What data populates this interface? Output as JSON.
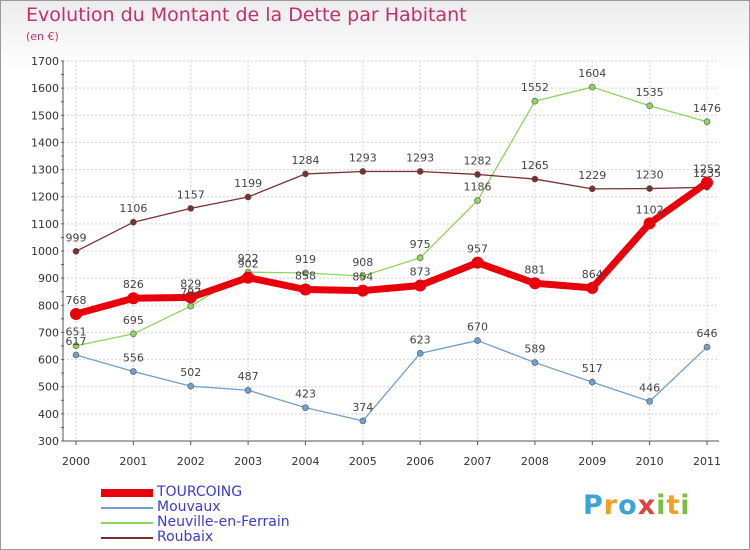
{
  "title": "Evolution du Montant de la Dette par Habitant",
  "unit_label": "(en €)",
  "logo": {
    "text": "Proxiti",
    "letters": [
      {
        "ch": "P",
        "color": "#3aa3d8"
      },
      {
        "ch": "r",
        "color": "#f0a020"
      },
      {
        "ch": "o",
        "color": "#3aa3d8"
      },
      {
        "ch": "x",
        "color": "#e04040"
      },
      {
        "ch": "i",
        "color": "#7ac142"
      },
      {
        "ch": "t",
        "color": "#f0a020"
      },
      {
        "ch": "i",
        "color": "#7ac142"
      }
    ]
  },
  "chart_data": {
    "type": "line",
    "title": "Evolution du Montant de la Dette par Habitant",
    "ylabel": "(en €)",
    "xlabel": "",
    "x": [
      "2000",
      "2001",
      "2002",
      "2003",
      "2004",
      "2005",
      "2006",
      "2007",
      "2008",
      "2009",
      "2010",
      "2011"
    ],
    "ylim": [
      300,
      1700
    ],
    "yticks": [
      300,
      400,
      500,
      600,
      700,
      800,
      900,
      1000,
      1100,
      1200,
      1300,
      1400,
      1500,
      1600,
      1700
    ],
    "grid": true,
    "legend": "bottom-left",
    "series": [
      {
        "name": "TOURCOING",
        "color": "#e8000b",
        "values": [
          768,
          826,
          829,
          902,
          858,
          854,
          873,
          957,
          881,
          864,
          1102,
          1252
        ]
      },
      {
        "name": "Mouvaux",
        "color": "#6fa0d0",
        "values": [
          617,
          556,
          502,
          487,
          423,
          374,
          623,
          670,
          589,
          517,
          446,
          646
        ]
      },
      {
        "name": "Neuville-en-Ferrain",
        "color": "#8fd45c",
        "values": [
          651,
          695,
          797,
          922,
          919,
          908,
          975,
          1186,
          1552,
          1604,
          1535,
          1476
        ]
      },
      {
        "name": "Roubaix",
        "color": "#7a3030",
        "values": [
          999,
          1106,
          1157,
          1199,
          1284,
          1293,
          1293,
          1282,
          1265,
          1229,
          1230,
          1235
        ]
      }
    ]
  }
}
